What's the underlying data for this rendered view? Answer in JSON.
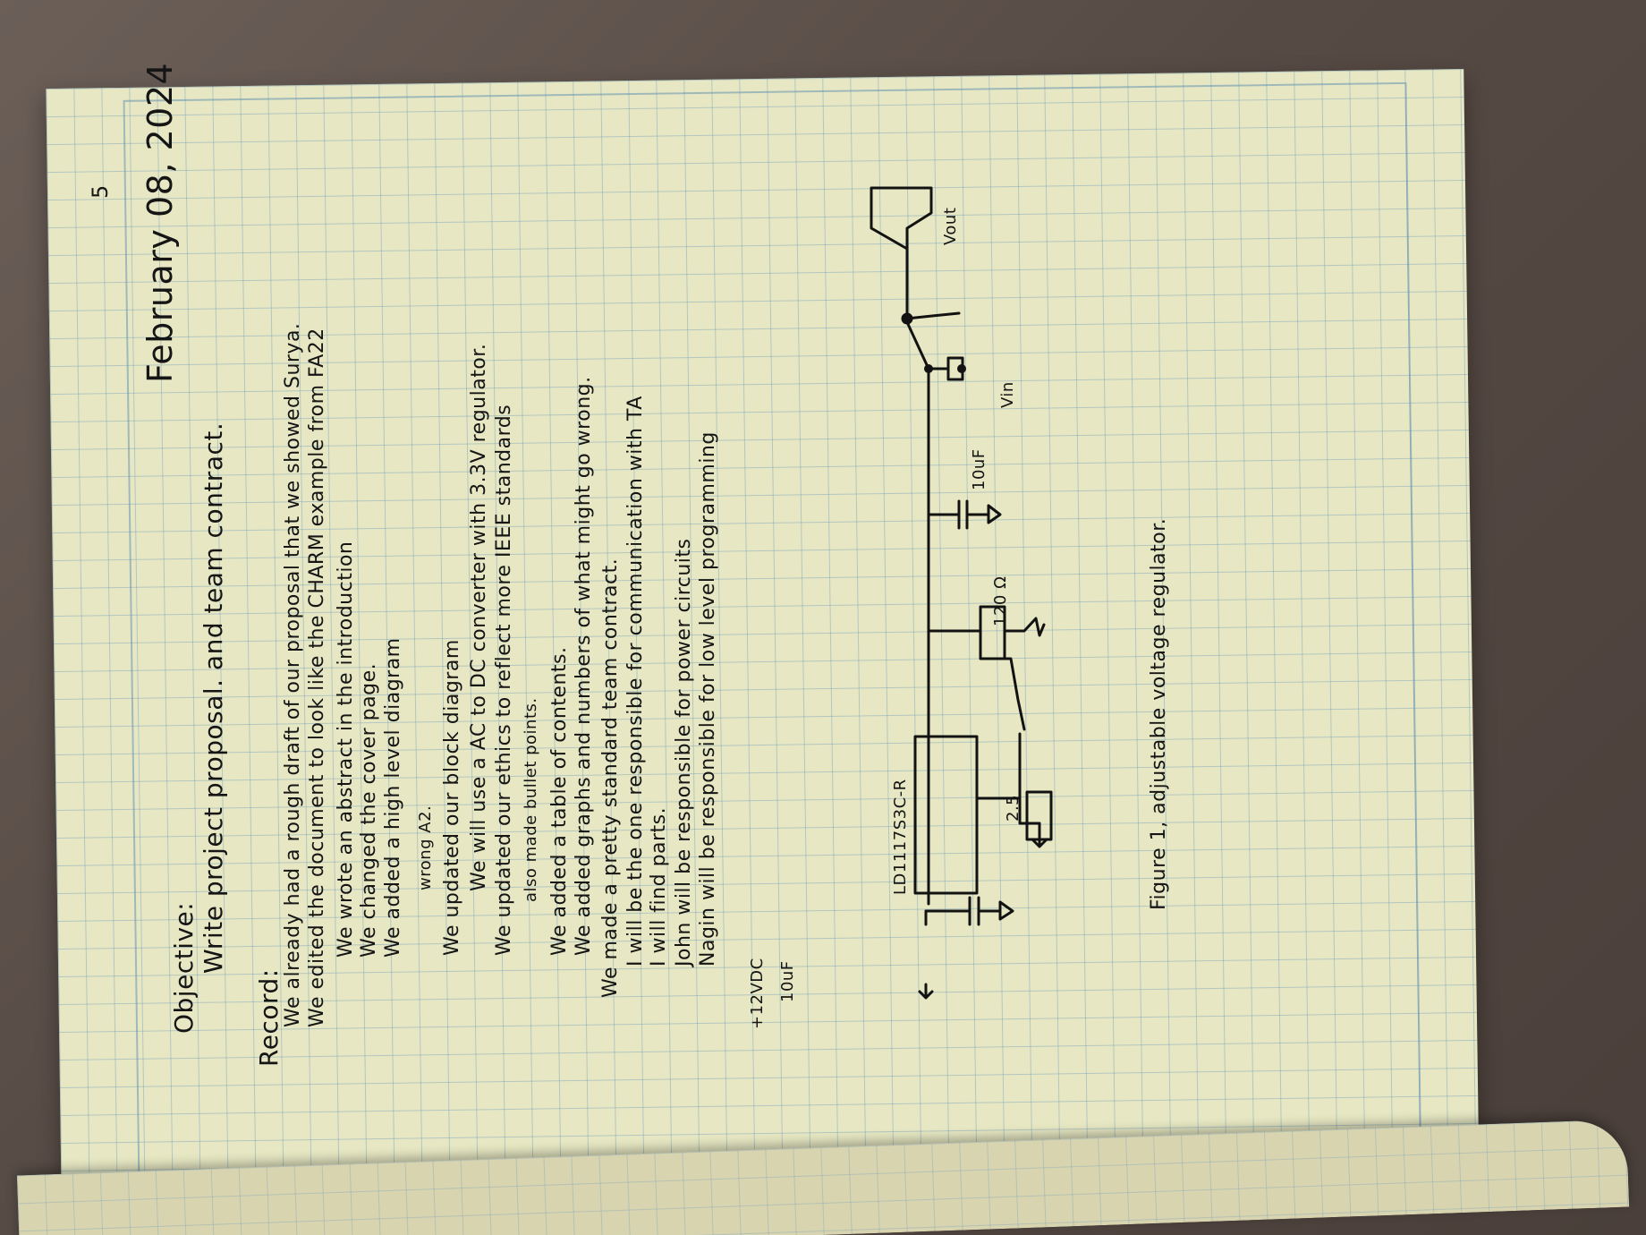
{
  "document": {
    "page_number": "5",
    "date": "February 08, 2024",
    "objective": {
      "heading": "Objective:",
      "text": "Write project proposal. and team contract."
    },
    "record": {
      "heading": "Record:",
      "items": [
        "We already had a rough draft of our proposal that we showed Surya.",
        "We edited the document to look like the CHARM example from FA22",
        "We wrote an abstract in the introduction",
        "We changed the cover page.",
        "We added a high level diagram",
        "wrong A2.",
        "We updated our block diagram",
        "We will use a AC to DC converter with 3.3V regulator.",
        "We updated our ethics to reflect more IEEE standards",
        "also made bullet points.",
        "We added a table of contents.",
        "We added graphs and numbers of what might go wrong.",
        "We made a pretty standard team contract.",
        "I will be the one responsible for communication with TA",
        "I will find parts.",
        "John will be responsible for power circuits",
        "Nagin will be responsible for low level programming"
      ]
    },
    "schematic": {
      "input_label": "+12VDC",
      "input_cap": "10uF",
      "regulator": "LD1117S3C-R",
      "resistor_top": "120 Ω",
      "resistor_bottom": "2.5",
      "output_cap": "10uF",
      "vin_label": "Vin",
      "vout_label": "Vout",
      "caption": "Figure 1, adjustable voltage regulator."
    }
  }
}
